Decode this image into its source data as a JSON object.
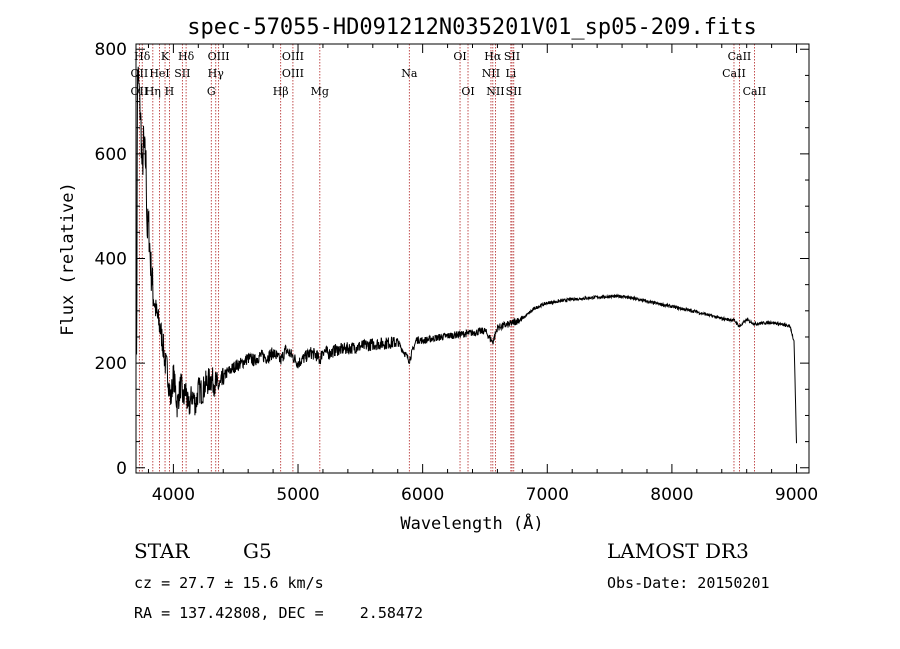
{
  "chart_data": {
    "type": "line",
    "title": "spec-57055-HD091212N035201V01_sp05-209.fits",
    "xlabel": "Wavelength (Å)",
    "ylabel": "Flux (relative)",
    "xlim": [
      3700,
      9100
    ],
    "ylim": [
      -10,
      810
    ],
    "x_ticks": [
      4000,
      5000,
      6000,
      7000,
      8000,
      9000
    ],
    "y_ticks": [
      0,
      200,
      400,
      600,
      800
    ],
    "grid": false,
    "line_color": "#000000",
    "marker_color": "#b22222",
    "spectral_lines": [
      {
        "label": "Hδ",
        "wavelength": 3750,
        "row": 0
      },
      {
        "label": "K",
        "wavelength": 3933,
        "row": 0
      },
      {
        "label": "Hδ",
        "wavelength": 4102,
        "row": 0
      },
      {
        "label": "OIII",
        "wavelength": 4363,
        "row": 0
      },
      {
        "label": "OIII",
        "wavelength": 4959,
        "row": 0
      },
      {
        "label": "OI",
        "wavelength": 6300,
        "row": 0
      },
      {
        "label": "Hα",
        "wavelength": 6563,
        "row": 0
      },
      {
        "label": "SII",
        "wavelength": 6717,
        "row": 0
      },
      {
        "label": "CaII",
        "wavelength": 8542,
        "row": 0
      },
      {
        "label": "OII",
        "wavelength": 3727,
        "row": 1
      },
      {
        "label": "HeI",
        "wavelength": 3889,
        "row": 1
      },
      {
        "label": "SII",
        "wavelength": 4072,
        "row": 1
      },
      {
        "label": "Hγ",
        "wavelength": 4340,
        "row": 1
      },
      {
        "label": "OIII",
        "wavelength": 4959,
        "row": 1
      },
      {
        "label": "Na",
        "wavelength": 5893,
        "row": 1
      },
      {
        "label": "NII",
        "wavelength": 6548,
        "row": 1
      },
      {
        "label": "Li",
        "wavelength": 6708,
        "row": 1
      },
      {
        "label": "CaII",
        "wavelength": 8498,
        "row": 1
      },
      {
        "label": "OII",
        "wavelength": 3727,
        "row": 2
      },
      {
        "label": "Hη",
        "wavelength": 3835,
        "row": 2
      },
      {
        "label": "H",
        "wavelength": 3968,
        "row": 2
      },
      {
        "label": "G",
        "wavelength": 4304,
        "row": 2
      },
      {
        "label": "Hβ",
        "wavelength": 4861,
        "row": 2
      },
      {
        "label": "Mg",
        "wavelength": 5175,
        "row": 2
      },
      {
        "label": "OI",
        "wavelength": 6364,
        "row": 2
      },
      {
        "label": "NII",
        "wavelength": 6584,
        "row": 2
      },
      {
        "label": "SII",
        "wavelength": 6731,
        "row": 2
      },
      {
        "label": "CaII",
        "wavelength": 8662,
        "row": 2
      }
    ],
    "series": [
      {
        "x": [
          3700,
          3706,
          3712,
          3720,
          3730,
          3740,
          3750,
          3760,
          3770,
          3780,
          3790,
          3800,
          3820,
          3840,
          3860,
          3880,
          3900,
          3920,
          3933,
          3950,
          3968,
          3980,
          4000,
          4030,
          4060,
          4080,
          4100,
          4120,
          4150,
          4180,
          4200,
          4230,
          4260,
          4300,
          4340,
          4380,
          4420,
          4450,
          4500,
          4550,
          4600,
          4650,
          4700,
          4750,
          4800,
          4861,
          4900,
          4950,
          5000,
          5050,
          5100,
          5150,
          5175,
          5200,
          5250,
          5300,
          5400,
          5500,
          5600,
          5700,
          5800,
          5893,
          5950,
          6000,
          6100,
          6200,
          6300,
          6400,
          6500,
          6563,
          6600,
          6700,
          6800,
          6900,
          7000,
          7200,
          7400,
          7600,
          7800,
          8000,
          8200,
          8400,
          8500,
          8542,
          8600,
          8662,
          8800,
          8950,
          8980,
          9000
        ],
        "y": [
          300,
          220,
          760,
          740,
          700,
          650,
          560,
          620,
          600,
          580,
          450,
          470,
          380,
          330,
          300,
          280,
          260,
          230,
          200,
          190,
          150,
          130,
          180,
          120,
          160,
          130,
          150,
          110,
          140,
          120,
          150,
          145,
          160,
          170,
          160,
          155,
          180,
          185,
          195,
          200,
          210,
          205,
          215,
          210,
          220,
          205,
          225,
          215,
          200,
          210,
          220,
          215,
          205,
          225,
          218,
          225,
          228,
          232,
          236,
          238,
          240,
          205,
          245,
          243,
          248,
          252,
          255,
          258,
          262,
          240,
          268,
          275,
          285,
          305,
          315,
          322,
          326,
          328,
          318,
          308,
          298,
          285,
          282,
          270,
          283,
          275,
          278,
          270,
          240,
          45
        ]
      }
    ]
  },
  "footer": {
    "object_type": "STAR",
    "subclass": "G5",
    "redshift": "cz = 27.7 ± 15.6 km/s",
    "coordinates": "RA = 137.42808, DEC =    2.58472",
    "survey": "LAMOST DR3",
    "obs_date": "Obs-Date: 20150201"
  }
}
